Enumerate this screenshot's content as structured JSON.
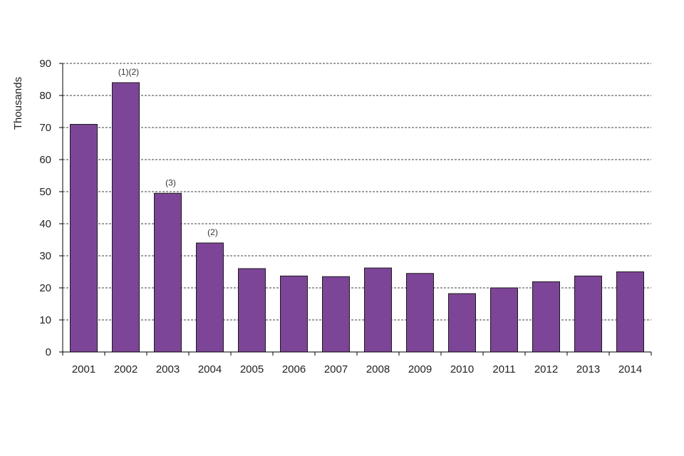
{
  "chart_data": {
    "type": "bar",
    "title": "",
    "xlabel": "",
    "ylabel": "Thousands",
    "ylim": [
      0,
      90
    ],
    "yticks": [
      0,
      10,
      20,
      30,
      40,
      50,
      60,
      70,
      80,
      90
    ],
    "grid": true,
    "categories": [
      "2001",
      "2002",
      "2003",
      "2004",
      "2005",
      "2006",
      "2007",
      "2008",
      "2009",
      "2010",
      "2011",
      "2012",
      "2013",
      "2014"
    ],
    "values": [
      71,
      84,
      49.5,
      34,
      26,
      23.7,
      23.5,
      26.2,
      24.5,
      18.2,
      20,
      21.9,
      23.7,
      25
    ],
    "annotations": [
      {
        "category": "2002",
        "text": "(1)(2)"
      },
      {
        "category": "2003",
        "text": "(3)"
      },
      {
        "category": "2004",
        "text": "(2)"
      }
    ],
    "colors": {
      "bar_fill": "#7D4597",
      "bar_stroke": "#1a1a1a",
      "grid": "#000000",
      "axis": "#000000"
    }
  }
}
